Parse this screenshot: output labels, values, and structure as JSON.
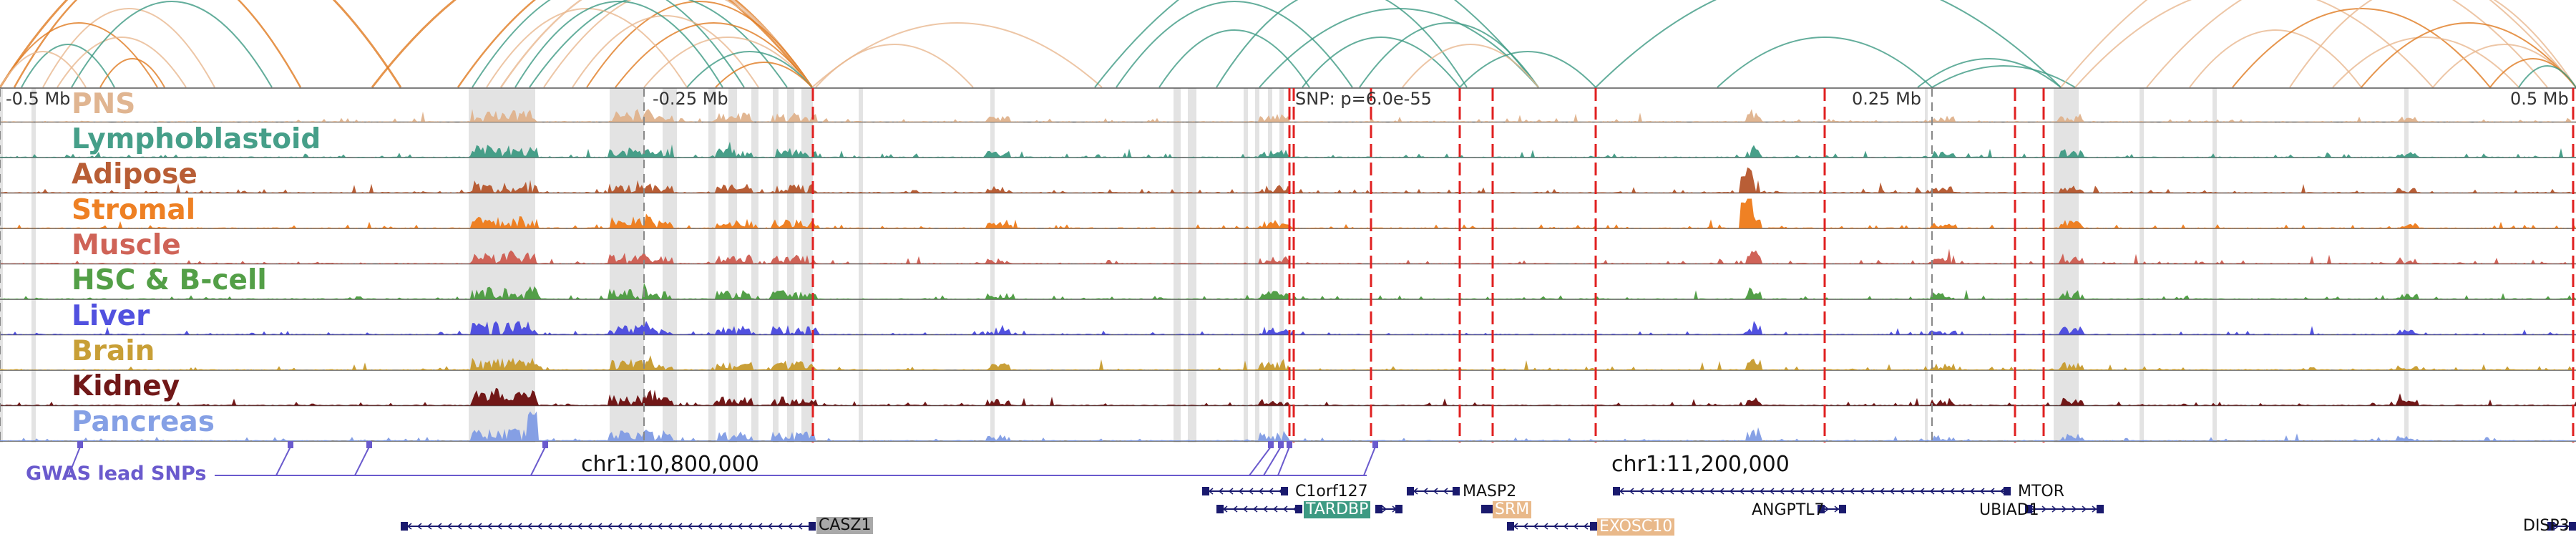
{
  "axis": {
    "ticks": [
      "-0.5 Mb",
      "-0.25 Mb",
      "SNP: p=6.0e-55",
      "0.25 Mb",
      "0.5 Mb"
    ]
  },
  "tracks": [
    {
      "name": "PNS",
      "color": "#dfb28c"
    },
    {
      "name": "Lymphoblastoid",
      "color": "#3d9a83"
    },
    {
      "name": "Adipose",
      "color": "#b5552b"
    },
    {
      "name": "Stromal",
      "color": "#ee7a18"
    },
    {
      "name": "Muscle",
      "color": "#cd5b4f"
    },
    {
      "name": "HSC & B-cell",
      "color": "#4a9a3e"
    },
    {
      "name": "Liver",
      "color": "#4848de"
    },
    {
      "name": "Brain",
      "color": "#c69a2c"
    },
    {
      "name": "Kidney",
      "color": "#6a0c0c"
    },
    {
      "name": "Pancreas",
      "color": "#7f9be4"
    }
  ],
  "gwas": {
    "label": "GWAS lead SNPs",
    "color": "#6a5acd"
  },
  "coords": [
    "chr1:10,800,000",
    "chr1:11,200,000"
  ],
  "genes": [
    {
      "name": "CASZ1",
      "boxed": true,
      "box_color": "#a9a9a9",
      "text_color": "#111111"
    },
    {
      "name": "C1orf127",
      "boxed": false
    },
    {
      "name": "TARDBP",
      "boxed": true,
      "box_color": "#3d9a83",
      "text_color": "#ffffff"
    },
    {
      "name": "MASP2",
      "boxed": false
    },
    {
      "name": "SRM",
      "boxed": true,
      "box_color": "#e9b98a",
      "text_color": "#ffffff"
    },
    {
      "name": "EXOSC10",
      "boxed": true,
      "box_color": "#e9b98a",
      "text_color": "#ffffff"
    },
    {
      "name": "ANGPTL7",
      "boxed": false
    },
    {
      "name": "MTOR",
      "boxed": false
    },
    {
      "name": "UBIAD1",
      "boxed": false
    },
    {
      "name": "DISP3",
      "boxed": false
    }
  ],
  "colors": {
    "snp_marker": "#e02020",
    "highlight": "#d9d9d9",
    "gene_strand": "#1a1a6e",
    "arc_orange": "#e07a20",
    "arc_tan": "#e8b890",
    "arc_teal": "#3d9a83"
  }
}
